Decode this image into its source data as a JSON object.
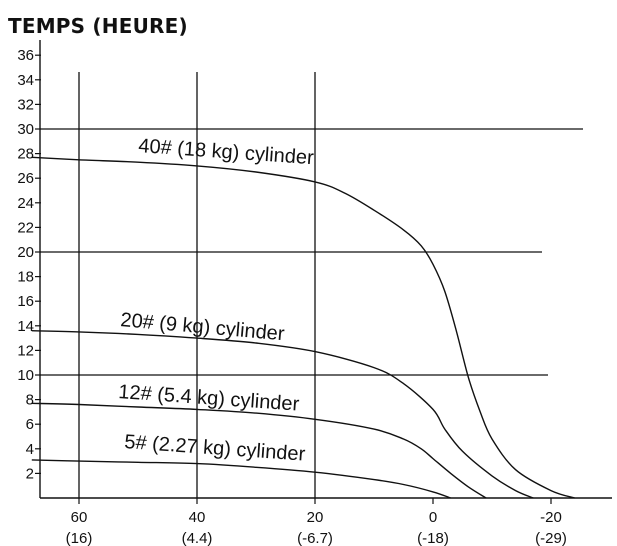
{
  "chart_data": {
    "type": "line",
    "title": "TEMPS (HEURE)",
    "xlabel": "",
    "ylabel": "",
    "xlim": [
      68,
      -28
    ],
    "ylim": [
      0,
      37
    ],
    "x_ticks": [
      {
        "value": 60,
        "label": "60",
        "sublabel": "(16)"
      },
      {
        "value": 40,
        "label": "40",
        "sublabel": "(4.4)"
      },
      {
        "value": 20,
        "label": "20",
        "sublabel": "(-6.7)"
      },
      {
        "value": 0,
        "label": "0",
        "sublabel": "(-18)"
      },
      {
        "value": -20,
        "label": "-20",
        "sublabel": "(-29)"
      }
    ],
    "y_ticks": [
      2,
      4,
      6,
      8,
      10,
      12,
      14,
      16,
      18,
      20,
      22,
      24,
      26,
      28,
      30,
      32,
      34,
      36
    ],
    "grid": {
      "horizontal": [
        30,
        20,
        10
      ],
      "vertical": [
        60,
        40,
        20
      ]
    },
    "series": [
      {
        "name": "40# (18 kg) cylinder",
        "points": [
          [
            68,
            27.7
          ],
          [
            60,
            27.5
          ],
          [
            50,
            27.3
          ],
          [
            40,
            27.0
          ],
          [
            30,
            26.5
          ],
          [
            20,
            25.7
          ],
          [
            15,
            24.8
          ],
          [
            10,
            23.4
          ],
          [
            5,
            21.8
          ],
          [
            2,
            20.5
          ],
          [
            0,
            19.0
          ],
          [
            -2,
            16.8
          ],
          [
            -4,
            13.5
          ],
          [
            -6,
            9.8
          ],
          [
            -8,
            7.0
          ],
          [
            -10,
            4.8
          ],
          [
            -14,
            2.3
          ],
          [
            -20,
            0.6
          ],
          [
            -24,
            0
          ]
        ]
      },
      {
        "name": "20# (9 kg) cylinder",
        "points": [
          [
            68,
            13.6
          ],
          [
            60,
            13.5
          ],
          [
            50,
            13.3
          ],
          [
            40,
            13.0
          ],
          [
            30,
            12.6
          ],
          [
            20,
            11.9
          ],
          [
            10,
            10.6
          ],
          [
            5,
            9.3
          ],
          [
            0,
            7.2
          ],
          [
            -2,
            5.6
          ],
          [
            -5,
            3.8
          ],
          [
            -10,
            1.8
          ],
          [
            -14,
            0.6
          ],
          [
            -17,
            0
          ]
        ]
      },
      {
        "name": "12# (5.4 kg) cylinder",
        "points": [
          [
            68,
            7.7
          ],
          [
            60,
            7.6
          ],
          [
            50,
            7.4
          ],
          [
            40,
            7.2
          ],
          [
            30,
            6.9
          ],
          [
            20,
            6.4
          ],
          [
            10,
            5.6
          ],
          [
            5,
            4.8
          ],
          [
            2,
            4.0
          ],
          [
            0,
            3.2
          ],
          [
            -3,
            2.0
          ],
          [
            -6,
            0.9
          ],
          [
            -9,
            0
          ]
        ]
      },
      {
        "name": "5# (2.27 kg) cylinder",
        "points": [
          [
            68,
            3.1
          ],
          [
            60,
            3.0
          ],
          [
            50,
            2.9
          ],
          [
            40,
            2.8
          ],
          [
            30,
            2.5
          ],
          [
            20,
            2.1
          ],
          [
            10,
            1.5
          ],
          [
            5,
            1.1
          ],
          [
            0,
            0.5
          ],
          [
            -3,
            0
          ]
        ]
      }
    ],
    "legend": "none"
  }
}
